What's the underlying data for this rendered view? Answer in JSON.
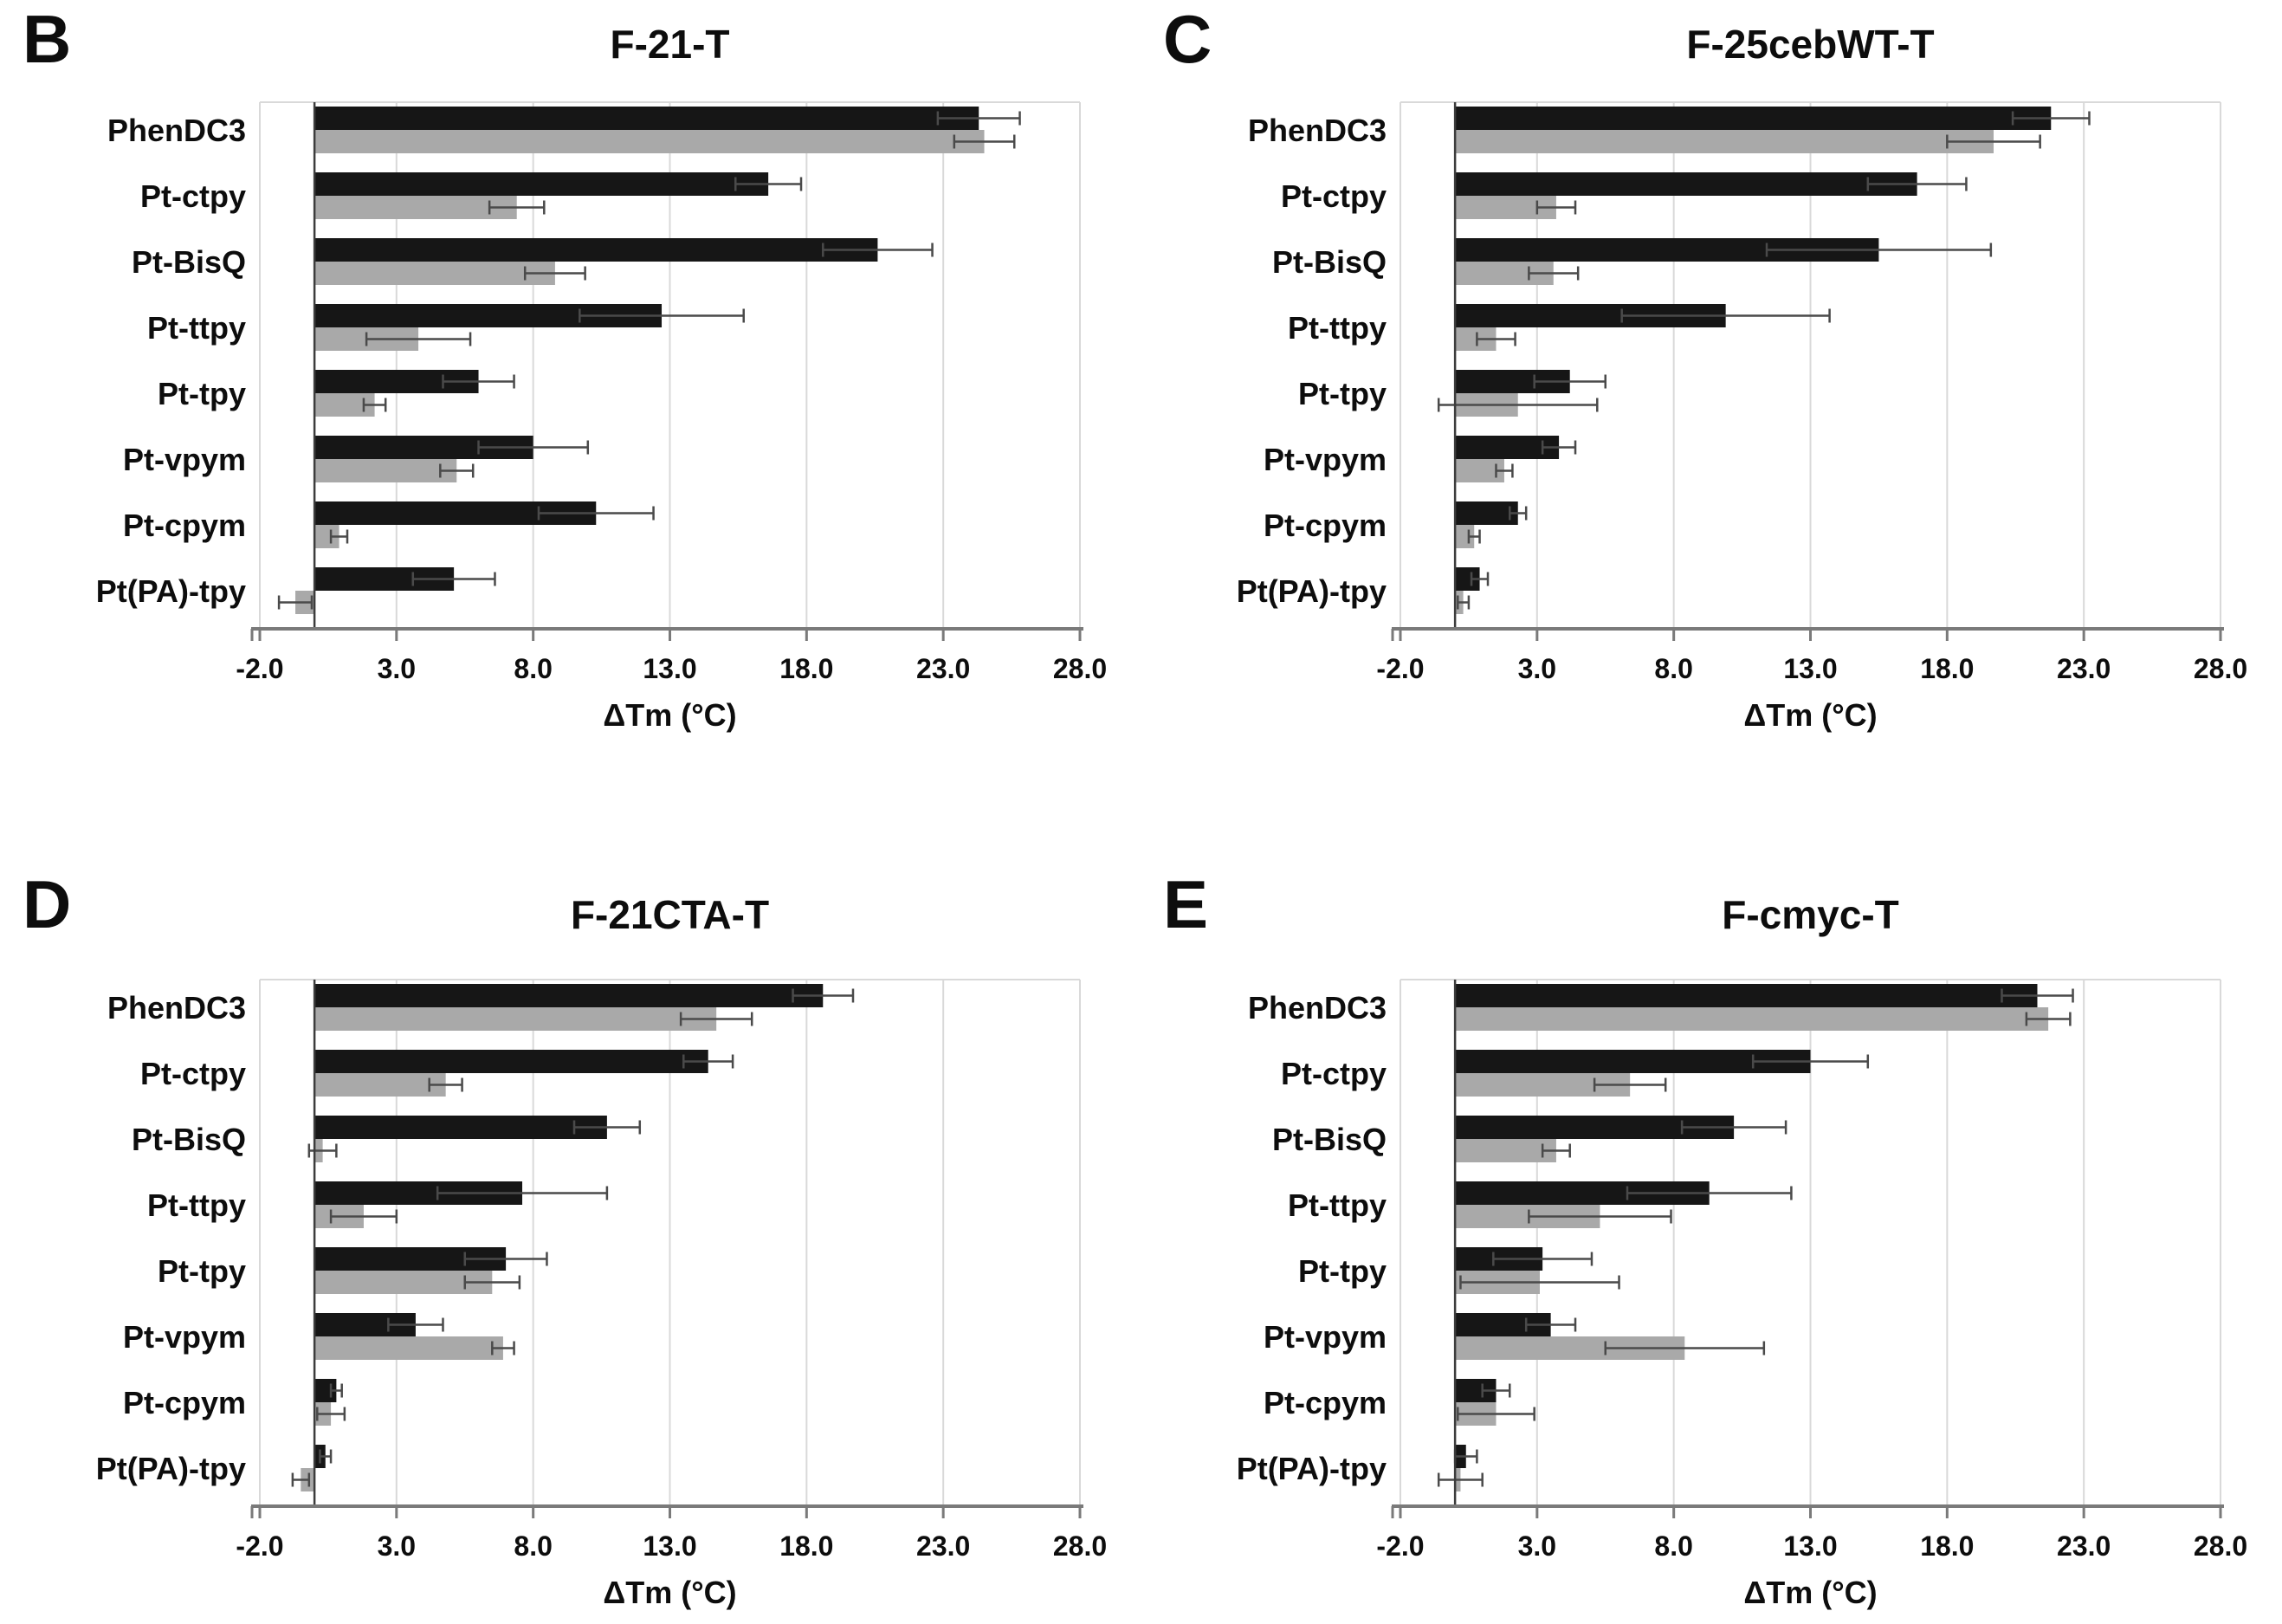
{
  "figure": {
    "background": "#ffffff",
    "colors": {
      "series_black": "#161616",
      "series_gray": "#a9a9a9",
      "gridline": "#d9d9d9",
      "zero_axis": "#3c3c3c",
      "x_axis": "#7a7a7a",
      "error_bar": "#4a4a4a",
      "text": "#0d0d0d"
    }
  },
  "chart_data": [
    {
      "panel_letter": "B",
      "title": "F-21-T",
      "type": "bar",
      "orientation": "horizontal",
      "legend": "none",
      "grid": "vertical",
      "xlabel": "ΔTm (°C)",
      "xlim": [
        -2.0,
        28.0
      ],
      "x_tick_values": [
        -2.0,
        3.0,
        8.0,
        13.0,
        18.0,
        23.0,
        28.0
      ],
      "x_ticks": [
        "-2.0",
        "3.0",
        "8.0",
        "13.0",
        "18.0",
        "23.0",
        "28.0"
      ],
      "categories": [
        "PhenDC3",
        "Pt-ctpy",
        "Pt-BisQ",
        "Pt-ttpy",
        "Pt-tpy",
        "Pt-vpym",
        "Pt-cpym",
        "Pt(PA)-tpy"
      ],
      "series": [
        {
          "name": "black",
          "color": "#161616",
          "values": [
            24.3,
            16.6,
            20.6,
            12.7,
            6.0,
            8.0,
            10.3,
            5.1
          ],
          "errors": [
            1.5,
            1.2,
            2.0,
            3.0,
            1.3,
            2.0,
            2.1,
            1.5
          ]
        },
        {
          "name": "gray",
          "color": "#a9a9a9",
          "values": [
            24.5,
            7.4,
            8.8,
            3.8,
            2.2,
            5.2,
            0.9,
            -0.7
          ],
          "errors": [
            1.1,
            1.0,
            1.1,
            1.9,
            0.4,
            0.6,
            0.3,
            0.6
          ]
        }
      ]
    },
    {
      "panel_letter": "C",
      "title": "F-25cebWT-T",
      "type": "bar",
      "orientation": "horizontal",
      "legend": "none",
      "grid": "vertical",
      "xlabel": "ΔTm (°C)",
      "xlim": [
        -2.0,
        28.0
      ],
      "x_tick_values": [
        -2.0,
        3.0,
        8.0,
        13.0,
        18.0,
        23.0,
        28.0
      ],
      "x_ticks": [
        "-2.0",
        "3.0",
        "8.0",
        "13.0",
        "18.0",
        "23.0",
        "28.0"
      ],
      "categories": [
        "PhenDC3",
        "Pt-ctpy",
        "Pt-BisQ",
        "Pt-ttpy",
        "Pt-tpy",
        "Pt-vpym",
        "Pt-cpym",
        "Pt(PA)-tpy"
      ],
      "series": [
        {
          "name": "black",
          "color": "#161616",
          "values": [
            21.8,
            16.9,
            15.5,
            9.9,
            4.2,
            3.8,
            2.3,
            0.9
          ],
          "errors": [
            1.4,
            1.8,
            4.1,
            3.8,
            1.3,
            0.6,
            0.3,
            0.3
          ]
        },
        {
          "name": "gray",
          "color": "#a9a9a9",
          "values": [
            19.7,
            3.7,
            3.6,
            1.5,
            2.3,
            1.8,
            0.7,
            0.3
          ],
          "errors": [
            1.7,
            0.7,
            0.9,
            0.7,
            2.9,
            0.3,
            0.2,
            0.2
          ]
        }
      ]
    },
    {
      "panel_letter": "D",
      "title": "F-21CTA-T",
      "type": "bar",
      "orientation": "horizontal",
      "legend": "none",
      "grid": "vertical",
      "xlabel": "ΔTm (°C)",
      "xlim": [
        -2.0,
        28.0
      ],
      "x_tick_values": [
        -2.0,
        3.0,
        8.0,
        13.0,
        18.0,
        23.0,
        28.0
      ],
      "x_ticks": [
        "-2.0",
        "3.0",
        "8.0",
        "13.0",
        "18.0",
        "23.0",
        "28.0"
      ],
      "categories": [
        "PhenDC3",
        "Pt-ctpy",
        "Pt-BisQ",
        "Pt-ttpy",
        "Pt-tpy",
        "Pt-vpym",
        "Pt-cpym",
        "Pt(PA)-tpy"
      ],
      "series": [
        {
          "name": "black",
          "color": "#161616",
          "values": [
            18.6,
            14.4,
            10.7,
            7.6,
            7.0,
            3.7,
            0.8,
            0.4
          ],
          "errors": [
            1.1,
            0.9,
            1.2,
            3.1,
            1.5,
            1.0,
            0.2,
            0.2
          ]
        },
        {
          "name": "gray",
          "color": "#a9a9a9",
          "values": [
            14.7,
            4.8,
            0.3,
            1.8,
            6.5,
            6.9,
            0.6,
            -0.5
          ],
          "errors": [
            1.3,
            0.6,
            0.5,
            1.2,
            1.0,
            0.4,
            0.5,
            0.3
          ]
        }
      ]
    },
    {
      "panel_letter": "E",
      "title": "F-cmyc-T",
      "type": "bar",
      "orientation": "horizontal",
      "legend": "none",
      "grid": "vertical",
      "xlabel": "ΔTm (°C)",
      "xlim": [
        -2.0,
        28.0
      ],
      "x_tick_values": [
        -2.0,
        3.0,
        8.0,
        13.0,
        18.0,
        23.0,
        28.0
      ],
      "x_ticks": [
        "-2.0",
        "3.0",
        "8.0",
        "13.0",
        "18.0",
        "23.0",
        "28.0"
      ],
      "categories": [
        "PhenDC3",
        "Pt-ctpy",
        "Pt-BisQ",
        "Pt-ttpy",
        "Pt-tpy",
        "Pt-vpym",
        "Pt-cpym",
        "Pt(PA)-tpy"
      ],
      "series": [
        {
          "name": "black",
          "color": "#161616",
          "values": [
            21.3,
            13.0,
            10.2,
            9.3,
            3.2,
            3.5,
            1.5,
            0.4
          ],
          "errors": [
            1.3,
            2.1,
            1.9,
            3.0,
            1.8,
            0.9,
            0.5,
            0.4
          ]
        },
        {
          "name": "gray",
          "color": "#a9a9a9",
          "values": [
            21.7,
            6.4,
            3.7,
            5.3,
            3.1,
            8.4,
            1.5,
            0.2
          ],
          "errors": [
            0.8,
            1.3,
            0.5,
            2.6,
            2.9,
            2.9,
            1.4,
            0.8
          ]
        }
      ]
    }
  ]
}
